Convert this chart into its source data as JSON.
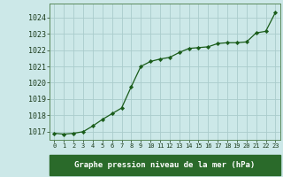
{
  "x": [
    0,
    1,
    2,
    3,
    4,
    5,
    6,
    7,
    8,
    9,
    10,
    11,
    12,
    13,
    14,
    15,
    16,
    17,
    18,
    19,
    20,
    21,
    22,
    23
  ],
  "y": [
    1016.9,
    1016.85,
    1016.9,
    1017.0,
    1017.35,
    1017.75,
    1018.1,
    1018.45,
    1019.75,
    1021.0,
    1021.3,
    1021.45,
    1021.55,
    1021.85,
    1022.1,
    1022.15,
    1022.2,
    1022.4,
    1022.45,
    1022.45,
    1022.5,
    1023.05,
    1023.15,
    1024.3
  ],
  "line_color": "#1a5c1a",
  "marker_color": "#1a5c1a",
  "bg_color": "#cce8e8",
  "grid_color": "#aacccc",
  "label_bg_color": "#2a6a2a",
  "label_text_color": "#ffffff",
  "xlabel": "Graphe pression niveau de la mer (hPa)",
  "ylim_min": 1016.5,
  "ylim_max": 1024.85,
  "yticks": [
    1017,
    1018,
    1019,
    1020,
    1021,
    1022,
    1023,
    1024
  ],
  "xticks": [
    0,
    1,
    2,
    3,
    4,
    5,
    6,
    7,
    8,
    9,
    10,
    11,
    12,
    13,
    14,
    15,
    16,
    17,
    18,
    19,
    20,
    21,
    22,
    23
  ]
}
